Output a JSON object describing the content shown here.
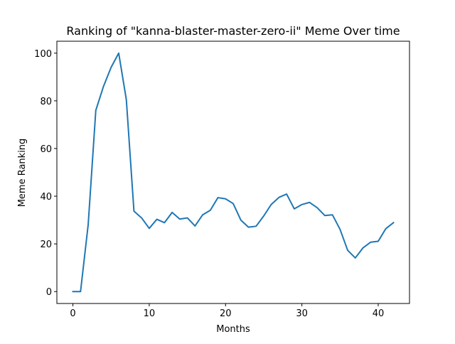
{
  "chart_data": {
    "type": "line",
    "title": "Ranking of \"kanna-blaster-master-zero-ii\" Meme Over time",
    "xlabel": "Months",
    "ylabel": "Meme Ranking",
    "xlim": [
      -2.1,
      44.1
    ],
    "ylim": [
      -5,
      105
    ],
    "xticks": [
      0,
      10,
      20,
      30,
      40
    ],
    "yticks": [
      0,
      20,
      40,
      60,
      80,
      100
    ],
    "grid": false,
    "line_color": "#1f77b4",
    "series": [
      {
        "x": [
          0,
          1,
          2,
          3,
          4,
          5,
          6,
          7,
          8,
          9,
          10,
          11,
          12,
          13,
          14,
          15,
          16,
          17,
          18,
          19,
          20,
          21,
          22,
          23,
          24,
          25,
          26,
          27,
          28,
          29,
          30,
          31,
          32,
          33,
          34,
          35,
          36,
          37,
          38,
          39,
          40,
          41,
          42
        ],
        "values": [
          0,
          0,
          28,
          76,
          86,
          94,
          100,
          80.5,
          33.7,
          30.9,
          26.5,
          30.3,
          28.9,
          33.2,
          30.4,
          30.9,
          27.5,
          32.2,
          34.1,
          39.4,
          38.9,
          36.9,
          30.0,
          27.0,
          27.4,
          31.7,
          36.6,
          39.5,
          40.9,
          34.7,
          36.5,
          37.4,
          35.2,
          31.9,
          32.2,
          26.1,
          17.3,
          14.1,
          18.3,
          20.7,
          21.1,
          26.4,
          28.9
        ]
      }
    ]
  }
}
